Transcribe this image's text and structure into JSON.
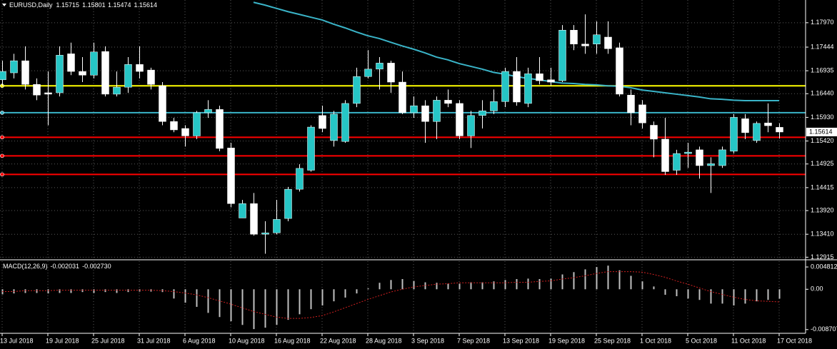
{
  "chart_data": {
    "type": "candlestick",
    "title": "EURUSD,Daily",
    "categories": [
      "13 Jul 2018",
      null,
      null,
      null,
      "19 Jul 2018",
      null,
      null,
      null,
      "25 Jul 2018",
      null,
      null,
      null,
      "31 Jul 2018",
      null,
      null,
      null,
      "6 Aug 2018",
      null,
      null,
      null,
      "10 Aug 2018",
      null,
      null,
      null,
      "16 Aug 2018",
      null,
      null,
      null,
      "22 Aug 2018",
      null,
      null,
      null,
      "28 Aug 2018",
      null,
      null,
      null,
      "3 Sep 2018",
      null,
      null,
      null,
      "7 Sep 2018",
      null,
      null,
      null,
      "13 Sep 2018",
      null,
      null,
      null,
      "19 Sep 2018",
      null,
      null,
      null,
      "25 Sep 2018",
      null,
      null,
      null,
      "1 Oct 2018",
      null,
      null,
      null,
      "5 Oct 2018",
      null,
      null,
      null,
      "11 Oct 2018",
      null,
      null,
      null,
      "17 Oct 2018"
    ],
    "open": [
      1.1674,
      1.1689,
      1.1715,
      1.1664,
      1.1646,
      1.1646,
      1.173,
      1.1692,
      1.1684,
      1.1735,
      1.1643,
      1.1658,
      1.1707,
      1.1695,
      1.1661,
      1.1584,
      1.1569,
      1.1553,
      1.1603,
      1.161,
      1.1527,
      1.1376,
      1.1407,
      1.1341,
      1.1344,
      1.1375,
      1.1438,
      1.1479,
      1.1597,
      1.1543,
      1.1541,
      1.1623,
      1.1681,
      1.1697,
      1.171,
      1.1669,
      1.1603,
      1.1618,
      1.1584,
      1.163,
      1.1623,
      1.1553,
      1.1597,
      1.1607,
      1.1627,
      1.1692,
      1.1623,
      1.1687,
      1.1674,
      1.1672,
      1.1781,
      1.1751,
      1.1751,
      1.1766,
      1.1743,
      1.1641,
      1.162,
      1.1576,
      1.1546,
      1.1479,
      1.1515,
      1.1523,
      1.1489,
      1.1489,
      1.152,
      1.159,
      1.1543,
      1.1581,
      1.15715
    ],
    "high": [
      1.1715,
      1.173,
      1.1746,
      1.1677,
      1.1692,
      1.1746,
      1.1754,
      1.1723,
      1.1754,
      1.1746,
      1.1692,
      1.1723,
      1.1746,
      1.17,
      1.1669,
      1.1592,
      1.1576,
      1.1607,
      1.163,
      1.1618,
      1.1538,
      1.1415,
      1.143,
      1.1369,
      1.1415,
      1.1443,
      1.1492,
      1.1576,
      1.1618,
      1.1607,
      1.163,
      1.17,
      1.1738,
      1.1723,
      1.1715,
      1.1692,
      1.1638,
      1.163,
      1.1638,
      1.1653,
      1.163,
      1.1607,
      1.163,
      1.1653,
      1.17,
      1.1723,
      1.17,
      1.1723,
      1.17,
      1.1792,
      1.1792,
      1.1815,
      1.18,
      1.18,
      1.1754,
      1.1653,
      1.163,
      1.1584,
      1.1592,
      1.1523,
      1.1538,
      1.153,
      1.1507,
      1.153,
      1.16,
      1.16,
      1.1584,
      1.1623,
      1.15801
    ],
    "low": [
      1.1661,
      1.1677,
      1.1653,
      1.163,
      1.1576,
      1.1638,
      1.1684,
      1.1669,
      1.1677,
      1.1638,
      1.1638,
      1.1646,
      1.1677,
      1.1653,
      1.1576,
      1.1561,
      1.153,
      1.1546,
      1.1592,
      1.152,
      1.1399,
      1.1376,
      1.1338,
      1.1299,
      1.1341,
      1.1369,
      1.1433,
      1.1476,
      1.1561,
      1.153,
      1.1538,
      1.1615,
      1.1677,
      1.1653,
      1.1646,
      1.16,
      1.1592,
      1.1538,
      1.1546,
      1.1615,
      1.1546,
      1.1527,
      1.1569,
      1.16,
      1.1615,
      1.1618,
      1.1615,
      1.1664,
      1.1661,
      1.1669,
      1.1738,
      1.173,
      1.173,
      1.173,
      1.1638,
      1.1576,
      1.1569,
      1.1507,
      1.1469,
      1.1469,
      1.1484,
      1.1461,
      1.143,
      1.1484,
      1.1515,
      1.1546,
      1.1538,
      1.1561,
      1.15474
    ],
    "close": [
      1.1692,
      1.1715,
      1.1664,
      1.1641,
      1.1643,
      1.1727,
      1.1692,
      1.1684,
      1.1734,
      1.1643,
      1.1658,
      1.1707,
      1.1692,
      1.1664,
      1.1584,
      1.1566,
      1.1553,
      1.1603,
      1.161,
      1.1526,
      1.1407,
      1.1407,
      1.1341,
      1.1344,
      1.1373,
      1.1438,
      1.1483,
      1.1572,
      1.1569,
      1.16,
      1.1623,
      1.1681,
      1.1697,
      1.171,
      1.1669,
      1.1603,
      1.1618,
      1.1584,
      1.163,
      1.1623,
      1.1553,
      1.1597,
      1.1607,
      1.1627,
      1.1692,
      1.1626,
      1.1687,
      1.1672,
      1.1669,
      1.1781,
      1.1751,
      1.1747,
      1.1771,
      1.1741,
      1.1643,
      1.1603,
      1.1581,
      1.1546,
      1.1476,
      1.1515,
      1.1518,
      1.1489,
      1.1493,
      1.1523,
      1.1593,
      1.156,
      1.158,
      1.1575,
      1.15614
    ],
    "colors": {
      "up": "#26c6c6",
      "down": "#ffffff",
      "wick": "#ffffff"
    },
    "ma": {
      "color": "#3ab4c8",
      "values": [
        null,
        null,
        null,
        null,
        null,
        null,
        null,
        null,
        null,
        null,
        null,
        null,
        null,
        null,
        null,
        null,
        null,
        null,
        null,
        null,
        null,
        null,
        1.1841,
        1.1835,
        1.1828,
        1.1821,
        1.1815,
        1.1809,
        1.1803,
        1.1794,
        1.1786,
        1.1777,
        1.1769,
        1.1763,
        1.1755,
        1.1747,
        1.174,
        1.1732,
        1.1723,
        1.1717,
        1.1709,
        1.1703,
        1.1697,
        1.169,
        1.1686,
        1.1681,
        1.1677,
        1.1674,
        1.167,
        1.1667,
        1.1666,
        1.1664,
        1.1663,
        1.1661,
        1.166,
        1.1657,
        1.1652,
        1.1649,
        1.1646,
        1.1643,
        1.164,
        1.1637,
        1.1633,
        1.1632,
        1.163,
        1.1629,
        1.1629,
        1.1629,
        1.1629
      ]
    },
    "hlines": [
      {
        "value": 1.1661,
        "color": "#ffff00"
      },
      {
        "value": 1.1603,
        "color": "#3ab4c8"
      },
      {
        "value": 1.155,
        "color": "#ff0000"
      },
      {
        "value": 1.151,
        "color": "#ff0000"
      },
      {
        "value": 1.147,
        "color": "#ff0000"
      }
    ],
    "ylim": [
      1.1289,
      1.1846
    ],
    "yticks": [
      {
        "value": 1.1797,
        "label": "1.17970"
      },
      1.17444,
      1.16935,
      {
        "value": 1.1644,
        "label": "1.16440"
      },
      {
        "value": 1.1593,
        "label": "1.15930"
      },
      {
        "value": 1.1542,
        "label": "1.15420"
      },
      1.14925,
      1.14415,
      {
        "value": 1.1392,
        "label": "1.13920"
      },
      {
        "value": 1.1341,
        "label": "1.13410"
      },
      1.12915
    ],
    "grid": true,
    "macd": {
      "title": "MACD(12,26,9)",
      "histogram": {
        "color": "#c0c0c0",
        "values": [
          -0.0011,
          -0.0009,
          -0.0008,
          -0.0008,
          -0.0009,
          -0.0008,
          -0.0008,
          -0.0006,
          -0.0008,
          -0.0006,
          -0.0008,
          -0.0006,
          -0.0005,
          -0.0005,
          -0.0006,
          -0.002,
          -0.0029,
          -0.0038,
          -0.0051,
          -0.006,
          -0.0069,
          -0.0077,
          -0.0086,
          -0.0083,
          -0.0077,
          -0.0066,
          -0.0054,
          -0.0043,
          -0.0035,
          -0.0026,
          -0.0018,
          -0.0009,
          0.0002,
          0.0014,
          0.002,
          0.0022,
          0.0018,
          0.0015,
          0.0014,
          0.0012,
          0.0012,
          0.0015,
          0.0015,
          0.0017,
          0.002,
          0.0022,
          0.0023,
          0.0022,
          0.0023,
          0.0032,
          0.0037,
          0.0043,
          0.0048,
          0.0051,
          0.0041,
          0.0029,
          0.0017,
          0.0006,
          -0.0012,
          -0.0015,
          -0.002,
          -0.0023,
          -0.0031,
          -0.0031,
          -0.0035,
          -0.0031,
          -0.0026,
          -0.0023,
          -0.002031
        ]
      },
      "signal": {
        "color": "#d02020",
        "values": [
          -0.0005,
          -0.0005,
          -0.0003,
          -0.0003,
          -0.0003,
          -0.0002,
          -0.0002,
          -0.0002,
          -0.0002,
          -0.0002,
          -0.0002,
          -0.0002,
          -0.0002,
          -0.0002,
          -0.0003,
          -0.0005,
          -0.0008,
          -0.0012,
          -0.0018,
          -0.0025,
          -0.0032,
          -0.004,
          -0.0048,
          -0.0054,
          -0.006,
          -0.0063,
          -0.0063,
          -0.0061,
          -0.0057,
          -0.0049,
          -0.004,
          -0.0031,
          -0.0022,
          -0.0014,
          -0.0006,
          0,
          0.0005,
          0.0008,
          0.0011,
          0.0012,
          0.0014,
          0.0014,
          0.0014,
          0.0014,
          0.0014,
          0.0015,
          0.0015,
          0.0017,
          0.0018,
          0.0022,
          0.0025,
          0.0029,
          0.0034,
          0.0038,
          0.0038,
          0.0038,
          0.0037,
          0.0032,
          0.0026,
          0.0018,
          0.0011,
          0.0003,
          -0.0005,
          -0.0011,
          -0.0017,
          -0.0022,
          -0.0025,
          -0.0026,
          -0.00273
        ],
        "value_labels": {
          "68": "-0.002730"
        }
      },
      "ylim": [
        -0.0092,
        0.0059
      ],
      "yticks": [
        0.004812,
        {
          "value": 0,
          "label": "0.00"
        },
        -0.008707
      ]
    }
  }
}
